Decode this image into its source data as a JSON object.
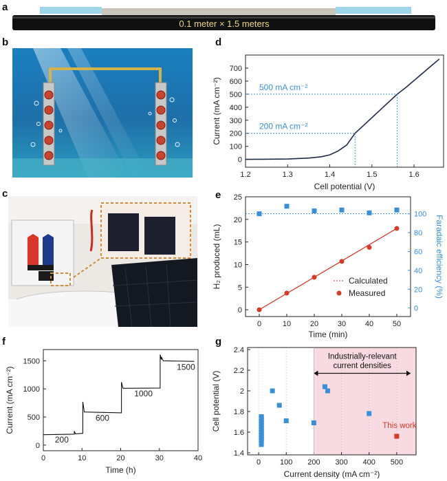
{
  "panels": {
    "a": "a",
    "b": "b",
    "c": "c",
    "d": "d",
    "e": "e",
    "f": "f",
    "g": "g"
  },
  "panel_a": {
    "caption": "0.1 meter × 1.5 meters"
  },
  "colors": {
    "blue": "#3a8fd8",
    "red": "#d83a2a",
    "annot_blue": "#3a8fd8",
    "shade": "#f7dbe0",
    "dark": "#1f2a44"
  },
  "chart_data": [
    {
      "id": "d",
      "type": "line",
      "xlabel": "Cell potential (V)",
      "ylabel": "Current (mA cm⁻²)",
      "xlim": [
        1.2,
        1.67
      ],
      "ylim": [
        -60,
        800
      ],
      "xticks": [
        1.2,
        1.3,
        1.4,
        1.5,
        1.6
      ],
      "yticks": [
        0,
        100,
        200,
        300,
        400,
        500,
        600,
        700
      ],
      "series": [
        {
          "x": [
            1.2,
            1.3,
            1.35,
            1.38,
            1.4,
            1.42,
            1.44,
            1.46,
            1.48,
            1.5,
            1.52,
            1.54,
            1.56,
            1.58,
            1.6,
            1.62,
            1.64,
            1.66
          ],
          "y": [
            0,
            3,
            10,
            20,
            35,
            65,
            110,
            200,
            260,
            320,
            380,
            440,
            500,
            550,
            605,
            660,
            715,
            770
          ]
        }
      ],
      "annotations": [
        {
          "text": "500 mA cm⁻²",
          "value": 500,
          "x_at": 1.56
        },
        {
          "text": "200 mA cm⁻²",
          "value": 200,
          "x_at": 1.46
        }
      ]
    },
    {
      "id": "e",
      "type": "scatter",
      "xlabel": "Time (min)",
      "ylabel": "H₂ produced (mL)",
      "y2label": "Faradaic efficiency (%)",
      "xlim": [
        -5,
        55
      ],
      "ylim": [
        -1.5,
        25
      ],
      "y2lim": [
        -9,
        118
      ],
      "xticks": [
        0,
        10,
        20,
        30,
        40,
        50
      ],
      "yticks": [
        0,
        5,
        10,
        15,
        20,
        25
      ],
      "y2ticks": [
        0,
        20,
        40,
        60,
        80,
        100
      ],
      "series": [
        {
          "name": "Calculated",
          "x": [
            0,
            50
          ],
          "y": [
            0,
            18
          ]
        },
        {
          "name": "Measured",
          "x": [
            0,
            10,
            20,
            30,
            40,
            50
          ],
          "y": [
            0,
            3.7,
            7.2,
            10.7,
            13.8,
            18.0
          ]
        },
        {
          "x": [
            0,
            10,
            20,
            30,
            40,
            50
          ],
          "y": [
            100,
            108,
            103,
            104,
            101,
            104
          ]
        }
      ],
      "ref_line_y2": 100
    },
    {
      "id": "f",
      "type": "line",
      "xlabel": "Time (h)",
      "ylabel": "Current (mA cm⁻²)",
      "xlim": [
        0,
        40
      ],
      "ylim": [
        -100,
        1700
      ],
      "xticks": [
        0,
        10,
        20,
        30,
        40
      ],
      "yticks": [
        0,
        500,
        1000,
        1500
      ],
      "series": [
        {
          "x": [
            0,
            8,
            8,
            8.3,
            8.3,
            10.2,
            10.2,
            10.6,
            10.6,
            20.2,
            20.2,
            20.6,
            20.6,
            30.2,
            30.2,
            30.5,
            30.5,
            31,
            31,
            39
          ],
          "y": [
            185,
            195,
            250,
            200,
            200,
            210,
            770,
            590,
            590,
            575,
            1120,
            1010,
            1010,
            1015,
            1610,
            1520,
            1570,
            1500,
            1500,
            1490
          ]
        }
      ],
      "labels": [
        {
          "text": "200",
          "x": 3,
          "y": 45
        },
        {
          "text": "600",
          "x": 13.5,
          "y": 430
        },
        {
          "text": "1000",
          "x": 23.5,
          "y": 870
        },
        {
          "text": "1500",
          "x": 34.5,
          "y": 1340
        }
      ]
    },
    {
      "id": "g",
      "type": "scatter",
      "xlabel": "Current density (mA cm⁻²)",
      "ylabel": "Cell potential (V)",
      "xlim": [
        -40,
        570
      ],
      "ylim": [
        1.38,
        2.42
      ],
      "xticks": [
        0,
        100,
        200,
        300,
        400,
        500
      ],
      "yticks": [
        1.4,
        1.6,
        1.8,
        2.0,
        2.2,
        2.4
      ],
      "shaded_range": [
        200,
        570
      ],
      "bracket_text": [
        "Industrially-relevant",
        "current densities"
      ],
      "series": [
        {
          "x": [
            10,
            10,
            10,
            10,
            10,
            10,
            10,
            10,
            10,
            10,
            10,
            10,
            10,
            10,
            10,
            10,
            10,
            10,
            10,
            10,
            10,
            10,
            10,
            10,
            10,
            10,
            10,
            10,
            10,
            10,
            50,
            75,
            100,
            200,
            240,
            250,
            400
          ],
          "y": [
            1.48,
            1.5,
            1.52,
            1.53,
            1.54,
            1.55,
            1.56,
            1.57,
            1.58,
            1.59,
            1.6,
            1.61,
            1.62,
            1.63,
            1.64,
            1.65,
            1.66,
            1.67,
            1.68,
            1.69,
            1.7,
            1.71,
            1.72,
            1.73,
            1.74,
            1.745,
            1.75,
            1.525,
            1.555,
            1.635,
            2.0,
            1.86,
            1.71,
            1.69,
            2.04,
            2.0,
            1.78
          ]
        },
        {
          "name": "This work",
          "x": [
            500
          ],
          "y": [
            1.56
          ]
        }
      ]
    }
  ]
}
